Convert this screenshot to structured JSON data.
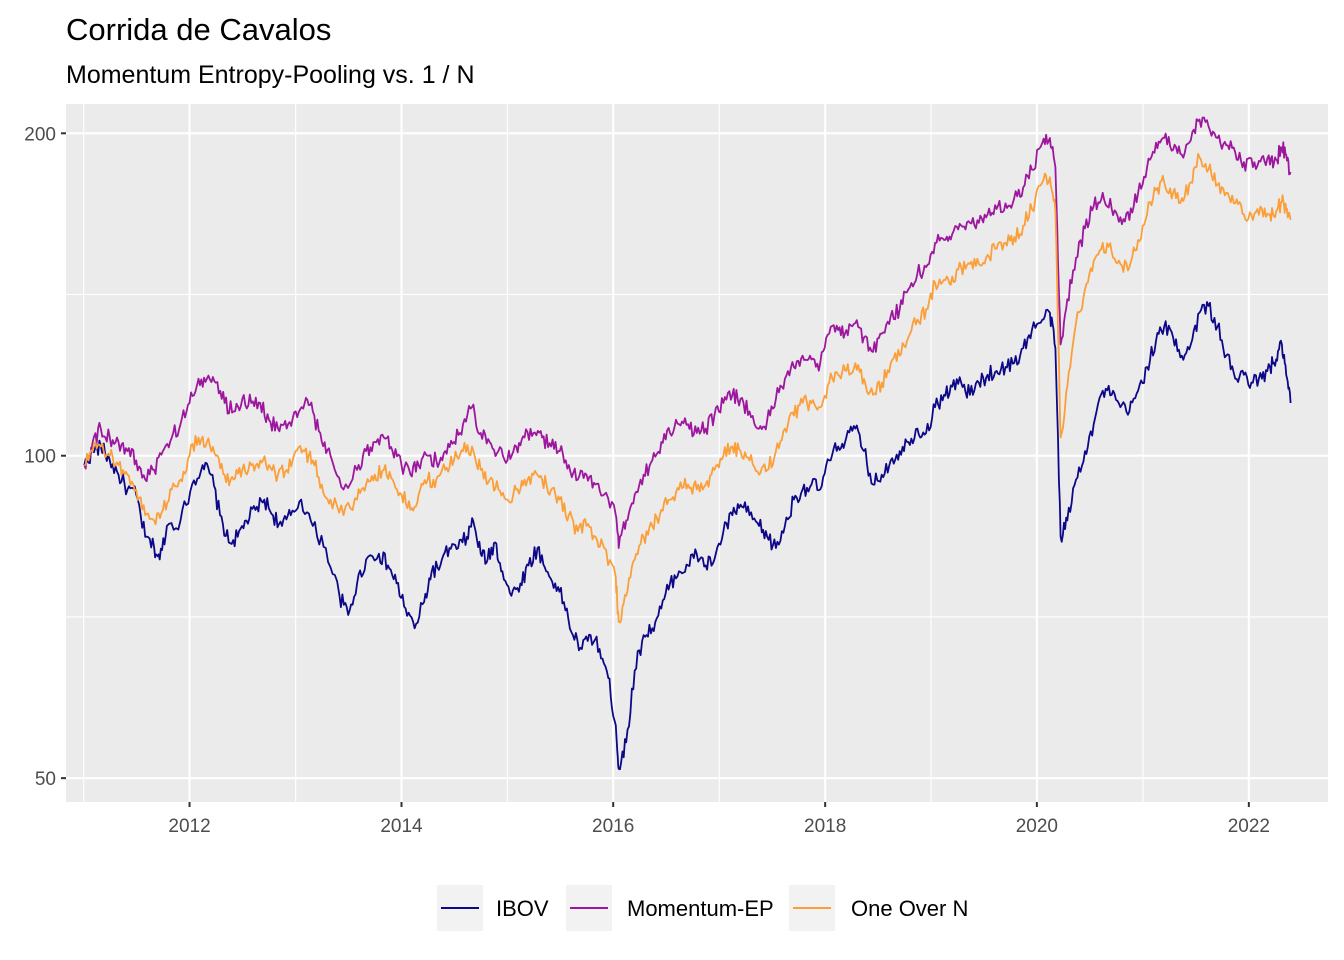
{
  "chart_data": {
    "type": "line",
    "title": "Corrida de Cavalos",
    "subtitle": "Momentum Entropy-Pooling vs. 1 / N",
    "xlabel": "",
    "ylabel": "",
    "y_scale": "log",
    "ylim": [
      47.5,
      213
    ],
    "xlim": [
      "2010-11-01",
      "2022-10-01"
    ],
    "y_ticks": [
      50,
      100,
      200
    ],
    "x_ticks": [
      "2012",
      "2014",
      "2016",
      "2018",
      "2020",
      "2022"
    ],
    "grid": true,
    "legend_position": "bottom",
    "series": [
      {
        "name": "IBOV",
        "color": "#0d0887",
        "x": [
          "2011-01-03",
          "2011-02-01",
          "2011-03-01",
          "2011-04-01",
          "2011-05-01",
          "2011-06-01",
          "2011-07-01",
          "2011-08-01",
          "2011-09-01",
          "2011-09-20",
          "2011-10-15",
          "2011-12-01",
          "2012-01-10",
          "2012-02-15",
          "2012-03-15",
          "2012-04-15",
          "2012-05-15",
          "2012-06-15",
          "2012-07-15",
          "2012-08-15",
          "2012-09-15",
          "2012-10-15",
          "2012-11-15",
          "2012-12-15",
          "2013-01-20",
          "2013-03-01",
          "2013-04-15",
          "2013-06-01",
          "2013-07-01",
          "2013-08-01",
          "2013-09-01",
          "2013-10-15",
          "2013-11-15",
          "2013-12-15",
          "2014-01-15",
          "2014-02-15",
          "2014-03-20",
          "2014-04-15",
          "2014-05-15",
          "2014-06-15",
          "2014-07-15",
          "2014-08-15",
          "2014-09-05",
          "2014-10-01",
          "2014-10-25",
          "2014-11-20",
          "2014-12-15",
          "2015-01-15",
          "2015-02-15",
          "2015-03-15",
          "2015-04-15",
          "2015-05-15",
          "2015-06-15",
          "2015-07-15",
          "2015-08-15",
          "2015-09-15",
          "2015-10-15",
          "2015-11-15",
          "2015-12-15",
          "2016-01-10",
          "2016-01-20",
          "2016-02-15",
          "2016-03-15",
          "2016-04-15",
          "2016-05-15",
          "2016-06-15",
          "2016-07-15",
          "2016-08-15",
          "2016-09-15",
          "2016-10-15",
          "2016-11-15",
          "2016-12-15",
          "2017-01-15",
          "2017-02-15",
          "2017-03-15",
          "2017-04-15",
          "2017-05-18",
          "2017-06-15",
          "2017-07-15",
          "2017-08-15",
          "2017-09-15",
          "2017-10-15",
          "2017-11-15",
          "2017-12-15",
          "2018-01-15",
          "2018-02-15",
          "2018-03-15",
          "2018-04-15",
          "2018-05-15",
          "2018-06-15",
          "2018-07-15",
          "2018-08-15",
          "2018-09-15",
          "2018-10-15",
          "2018-11-15",
          "2018-12-15",
          "2019-01-15",
          "2019-02-15",
          "2019-03-15",
          "2019-04-15",
          "2019-05-15",
          "2019-06-15",
          "2019-07-15",
          "2019-08-15",
          "2019-09-15",
          "2019-10-15",
          "2019-11-15",
          "2019-12-15",
          "2020-01-20",
          "2020-02-15",
          "2020-03-05",
          "2020-03-23",
          "2020-04-15",
          "2020-05-15",
          "2020-06-15",
          "2020-07-15",
          "2020-08-15",
          "2020-09-15",
          "2020-10-15",
          "2020-11-15",
          "2020-12-15",
          "2021-01-15",
          "2021-02-15",
          "2021-03-15",
          "2021-04-15",
          "2021-05-15",
          "2021-06-15",
          "2021-07-15",
          "2021-08-15",
          "2021-09-15",
          "2021-10-15",
          "2021-11-15",
          "2021-12-15",
          "2022-01-15",
          "2022-02-15",
          "2022-03-15",
          "2022-04-05",
          "2022-04-25",
          "2022-05-10",
          "2022-05-25"
        ],
        "values": [
          98,
          101,
          102,
          99,
          96,
          93,
          92,
          84,
          82,
          80,
          86,
          87,
          94,
          98,
          96,
          88,
          83,
          84,
          87,
          89,
          91,
          88,
          86,
          88,
          91,
          86,
          82,
          74,
          71,
          76,
          80,
          81,
          79,
          76,
          72,
          69,
          73,
          78,
          79,
          82,
          82,
          84,
          87,
          81,
          80,
          83,
          78,
          74,
          76,
          79,
          82,
          78,
          76,
          73,
          68,
          66,
          68,
          66,
          62,
          56,
          51,
          54,
          63,
          68,
          69,
          72,
          76,
          78,
          79,
          81,
          79,
          80,
          85,
          88,
          90,
          88,
          86,
          84,
          82,
          86,
          91,
          93,
          94,
          93,
          99,
          102,
          104,
          106,
          101,
          94,
          96,
          99,
          101,
          103,
          106,
          105,
          111,
          114,
          116,
          117,
          114,
          117,
          119,
          120,
          121,
          122,
          126,
          131,
          134,
          136,
          126,
          84,
          87,
          95,
          101,
          107,
          115,
          114,
          111,
          110,
          115,
          121,
          128,
          132,
          129,
          124,
          127,
          136,
          138,
          132,
          124,
          118,
          119,
          117,
          118,
          121,
          123,
          127,
          119,
          112
        ]
      },
      {
        "name": "Momentum-EP",
        "color": "#9c179e",
        "x": [
          "2011-01-03",
          "2011-02-01",
          "2011-03-01",
          "2011-04-01",
          "2011-05-01",
          "2011-06-01",
          "2011-07-01",
          "2011-08-01",
          "2011-09-01",
          "2011-10-01",
          "2011-11-01",
          "2011-12-01",
          "2012-01-01",
          "2012-02-01",
          "2012-03-01",
          "2012-04-01",
          "2012-05-01",
          "2012-06-01",
          "2012-07-01",
          "2012-08-01",
          "2012-09-01",
          "2012-10-01",
          "2012-11-01",
          "2012-12-01",
          "2013-01-01",
          "2013-02-01",
          "2013-03-01",
          "2013-04-01",
          "2013-05-01",
          "2013-06-15",
          "2013-08-01",
          "2013-09-01",
          "2013-10-01",
          "2013-11-01",
          "2013-12-01",
          "2014-01-01",
          "2014-02-01",
          "2014-03-01",
          "2014-04-01",
          "2014-05-01",
          "2014-06-01",
          "2014-07-01",
          "2014-08-01",
          "2014-09-01",
          "2014-10-01",
          "2014-11-01",
          "2014-12-01",
          "2015-01-01",
          "2015-02-01",
          "2015-03-01",
          "2015-04-01",
          "2015-05-01",
          "2015-06-01",
          "2015-07-01",
          "2015-08-01",
          "2015-09-01",
          "2015-10-01",
          "2015-11-01",
          "2015-12-01",
          "2016-01-10",
          "2016-01-20",
          "2016-02-15",
          "2016-03-15",
          "2016-04-15",
          "2016-05-15",
          "2016-06-15",
          "2016-07-15",
          "2016-08-15",
          "2016-09-15",
          "2016-10-15",
          "2016-11-15",
          "2016-12-15",
          "2017-01-15",
          "2017-02-15",
          "2017-03-15",
          "2017-04-15",
          "2017-05-18",
          "2017-06-15",
          "2017-07-15",
          "2017-08-15",
          "2017-09-15",
          "2017-10-15",
          "2017-11-15",
          "2017-12-15",
          "2018-01-15",
          "2018-02-15",
          "2018-03-15",
          "2018-04-15",
          "2018-05-15",
          "2018-06-15",
          "2018-07-15",
          "2018-08-15",
          "2018-09-15",
          "2018-10-15",
          "2018-11-15",
          "2018-12-15",
          "2019-01-15",
          "2019-02-15",
          "2019-03-15",
          "2019-04-15",
          "2019-05-15",
          "2019-06-15",
          "2019-07-15",
          "2019-08-15",
          "2019-09-15",
          "2019-10-15",
          "2019-11-15",
          "2019-12-15",
          "2020-01-20",
          "2020-02-15",
          "2020-03-05",
          "2020-03-23",
          "2020-04-15",
          "2020-05-15",
          "2020-06-15",
          "2020-07-15",
          "2020-08-15",
          "2020-09-15",
          "2020-10-15",
          "2020-11-15",
          "2020-12-15",
          "2021-01-15",
          "2021-02-15",
          "2021-03-15",
          "2021-04-15",
          "2021-05-15",
          "2021-06-15",
          "2021-07-15",
          "2021-08-15",
          "2021-09-15",
          "2021-10-15",
          "2021-11-15",
          "2021-12-15",
          "2022-01-15",
          "2022-02-15",
          "2022-03-15",
          "2022-04-05",
          "2022-04-25",
          "2022-05-10",
          "2022-05-25"
        ],
        "values": [
          98,
          103,
          106,
          104,
          103,
          101,
          99,
          95,
          97,
          101,
          104,
          107,
          112,
          118,
          118,
          117,
          112,
          110,
          113,
          112,
          112,
          108,
          106,
          106,
          110,
          112,
          110,
          103,
          100,
          93,
          97,
          101,
          103,
          104,
          101,
          98,
          96,
          98,
          100,
          99,
          101,
          103,
          107,
          111,
          105,
          103,
          101,
          99,
          102,
          104,
          105,
          104,
          102,
          101,
          98,
          95,
          96,
          94,
          92,
          88,
          82,
          87,
          92,
          96,
          99,
          103,
          105,
          107,
          107,
          105,
          106,
          109,
          112,
          114,
          113,
          110,
          106,
          108,
          113,
          118,
          121,
          124,
          123,
          122,
          130,
          131,
          131,
          133,
          129,
          125,
          130,
          135,
          137,
          143,
          148,
          150,
          158,
          159,
          161,
          164,
          165,
          165,
          168,
          170,
          172,
          174,
          178,
          185,
          196,
          198,
          186,
          127,
          140,
          153,
          163,
          171,
          176,
          170,
          167,
          166,
          176,
          186,
          196,
          198,
          193,
          191,
          197,
          206,
          203,
          198,
          195,
          192,
          188,
          186,
          190,
          187,
          189,
          194,
          191,
          184
        ]
      },
      {
        "name": "One Over N",
        "color": "#fb9f3a",
        "x": [
          "2011-01-03",
          "2011-02-01",
          "2011-03-01",
          "2011-04-01",
          "2011-05-01",
          "2011-06-01",
          "2011-07-01",
          "2011-08-01",
          "2011-09-01",
          "2011-10-01",
          "2011-11-01",
          "2011-12-01",
          "2012-01-01",
          "2012-02-01",
          "2012-03-01",
          "2012-04-01",
          "2012-05-01",
          "2012-06-01",
          "2012-07-01",
          "2012-08-01",
          "2012-09-01",
          "2012-10-01",
          "2012-11-01",
          "2012-12-01",
          "2013-01-01",
          "2013-02-01",
          "2013-03-01",
          "2013-04-01",
          "2013-05-01",
          "2013-06-15",
          "2013-08-01",
          "2013-09-01",
          "2013-10-01",
          "2013-11-01",
          "2013-12-01",
          "2014-01-01",
          "2014-02-01",
          "2014-03-01",
          "2014-04-01",
          "2014-05-01",
          "2014-06-01",
          "2014-07-01",
          "2014-08-01",
          "2014-09-01",
          "2014-10-01",
          "2014-11-01",
          "2014-12-01",
          "2015-01-01",
          "2015-02-01",
          "2015-03-01",
          "2015-04-01",
          "2015-05-01",
          "2015-06-01",
          "2015-07-01",
          "2015-08-01",
          "2015-09-01",
          "2015-10-01",
          "2015-11-01",
          "2015-12-01",
          "2016-01-10",
          "2016-01-20",
          "2016-02-15",
          "2016-03-15",
          "2016-04-15",
          "2016-05-15",
          "2016-06-15",
          "2016-07-15",
          "2016-08-15",
          "2016-09-15",
          "2016-10-15",
          "2016-11-15",
          "2016-12-15",
          "2017-01-15",
          "2017-02-15",
          "2017-03-15",
          "2017-04-15",
          "2017-05-18",
          "2017-06-15",
          "2017-07-15",
          "2017-08-15",
          "2017-09-15",
          "2017-10-15",
          "2017-11-15",
          "2017-12-15",
          "2018-01-15",
          "2018-02-15",
          "2018-03-15",
          "2018-04-15",
          "2018-05-15",
          "2018-06-15",
          "2018-07-15",
          "2018-08-15",
          "2018-09-15",
          "2018-10-15",
          "2018-11-15",
          "2018-12-15",
          "2019-01-15",
          "2019-02-15",
          "2019-03-15",
          "2019-04-15",
          "2019-05-15",
          "2019-06-15",
          "2019-07-15",
          "2019-08-15",
          "2019-09-15",
          "2019-10-15",
          "2019-11-15",
          "2019-12-15",
          "2020-01-20",
          "2020-02-15",
          "2020-03-05",
          "2020-03-23",
          "2020-04-15",
          "2020-05-15",
          "2020-06-15",
          "2020-07-15",
          "2020-08-15",
          "2020-09-15",
          "2020-10-15",
          "2020-11-15",
          "2020-12-15",
          "2021-01-15",
          "2021-02-15",
          "2021-03-15",
          "2021-04-15",
          "2021-05-15",
          "2021-06-15",
          "2021-07-15",
          "2021-08-15",
          "2021-09-15",
          "2021-10-15",
          "2021-11-15",
          "2021-12-15",
          "2022-01-15",
          "2022-02-15",
          "2022-03-15",
          "2022-04-05",
          "2022-04-25",
          "2022-05-10",
          "2022-05-25"
        ],
        "values": [
          98,
          101,
          102,
          100,
          98,
          96,
          93,
          88,
          87,
          89,
          93,
          95,
          100,
          104,
          103,
          100,
          96,
          95,
          97,
          98,
          99,
          98,
          96,
          97,
          101,
          101,
          99,
          94,
          91,
          88,
          91,
          94,
          96,
          97,
          95,
          92,
          89,
          92,
          95,
          95,
          97,
          99,
          101,
          102,
          97,
          95,
          93,
          91,
          93,
          95,
          96,
          95,
          93,
          91,
          88,
          85,
          86,
          84,
          82,
          77,
          70,
          74,
          80,
          84,
          86,
          89,
          91,
          93,
          94,
          93,
          94,
          97,
          100,
          102,
          101,
          99,
          96,
          97,
          101,
          106,
          109,
          112,
          112,
          111,
          117,
          119,
          120,
          122,
          118,
          114,
          117,
          122,
          124,
          129,
          134,
          137,
          145,
          146,
          147,
          150,
          151,
          151,
          154,
          156,
          158,
          160,
          164,
          170,
          180,
          182,
          169,
          104,
          116,
          133,
          143,
          152,
          158,
          155,
          151,
          150,
          159,
          168,
          177,
          180,
          176,
          174,
          180,
          190,
          185,
          179,
          176,
          172,
          168,
          166,
          170,
          168,
          169,
          173,
          170,
          166
        ]
      }
    ]
  }
}
